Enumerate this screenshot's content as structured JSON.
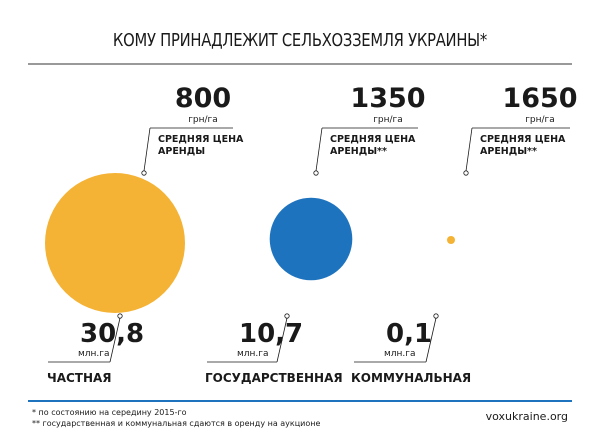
{
  "title": "КОМУ ПРИНАДЛЕЖИТ СЕЛЬХОЗЗЕМЛЯ УКРАИНЫ*",
  "footnotes": [
    "* по состоянию на середину 2015-го",
    "** государственная и коммунальная сдаются в оренду на аукционе"
  ],
  "source": "voxukraine.org",
  "colors": {
    "private": "#f5b335",
    "state": "#1e73be",
    "communal": "#f5b335",
    "accent_line": "#1e73be",
    "text": "#1a1a1a"
  },
  "chart_data": {
    "type": "bubble",
    "title": "КОМУ ПРИНАДЛЕЖИТ СЕЛЬХОЗЗЕМЛЯ УКРАИНЫ*",
    "area_unit": "млн.га",
    "price_unit": "грн/га",
    "categories": [
      "ЧАСТНАЯ",
      "ГОСУДАРСТВЕННАЯ",
      "КОММУНАЛЬНАЯ"
    ],
    "area_values": [
      30.8,
      10.7,
      0.1
    ],
    "area_labels": [
      "30,8",
      "10,7",
      "0,1"
    ],
    "price_values": [
      800,
      1350,
      1650
    ],
    "price_labels": [
      "800",
      "1350",
      "1650"
    ],
    "price_captions": [
      [
        "СРЕДНЯЯ ЦЕНА",
        "АРЕНДЫ"
      ],
      [
        "СРЕДНЯЯ ЦЕНА",
        "АРЕНДЫ**"
      ],
      [
        "СРЕДНЯЯ ЦЕНА",
        "АРЕНДЫ**"
      ]
    ],
    "series": [
      {
        "values": [
          30.8,
          10.7,
          0.1
        ]
      }
    ]
  }
}
